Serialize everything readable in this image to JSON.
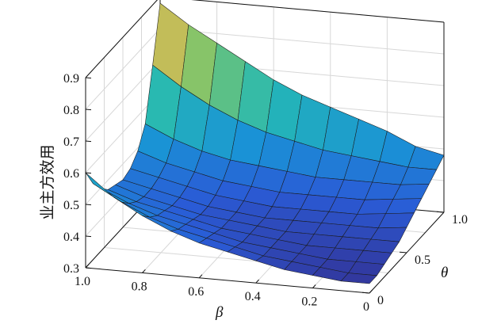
{
  "chart_data": {
    "type": "surface3d",
    "title": "",
    "xlabel": "β",
    "ylabel": "θ",
    "zlabel": "业主方效用",
    "xlim": [
      0,
      1
    ],
    "ylim": [
      0,
      1
    ],
    "zlim": [
      0.3,
      0.9
    ],
    "x_ticks": [
      "1.0",
      "0.8",
      "0.6",
      "0.4",
      "0.2",
      "0"
    ],
    "y_ticks": [
      "0",
      "0.5",
      "1.0"
    ],
    "z_ticks": [
      "0.3",
      "0.4",
      "0.5",
      "0.6",
      "0.7",
      "0.8",
      "0.9"
    ],
    "grid": true,
    "colormap": [
      "#352a87",
      "#2a5bd6",
      "#1a92d6",
      "#25b8b5",
      "#7cc56c",
      "#e7b84f",
      "#f9fb0e"
    ],
    "x": [
      0,
      0.1,
      0.2,
      0.3,
      0.4,
      0.5,
      0.6,
      0.7,
      0.8,
      0.9,
      1.0
    ],
    "y": [
      0,
      0.1,
      0.2,
      0.3,
      0.4,
      0.5,
      0.6,
      0.7,
      0.8,
      0.9,
      1.0
    ],
    "z": [
      [
        0.33,
        0.33,
        0.34,
        0.35,
        0.36,
        0.38,
        0.4,
        0.42,
        0.44,
        0.46,
        0.48
      ],
      [
        0.33,
        0.33,
        0.34,
        0.35,
        0.36,
        0.37,
        0.39,
        0.41,
        0.43,
        0.46,
        0.5
      ],
      [
        0.34,
        0.34,
        0.34,
        0.35,
        0.36,
        0.37,
        0.38,
        0.4,
        0.43,
        0.47,
        0.54
      ],
      [
        0.35,
        0.35,
        0.35,
        0.35,
        0.36,
        0.37,
        0.38,
        0.4,
        0.43,
        0.48,
        0.57
      ],
      [
        0.37,
        0.36,
        0.36,
        0.36,
        0.36,
        0.37,
        0.38,
        0.4,
        0.43,
        0.49,
        0.6
      ],
      [
        0.39,
        0.38,
        0.37,
        0.37,
        0.37,
        0.37,
        0.38,
        0.4,
        0.44,
        0.51,
        0.63
      ],
      [
        0.41,
        0.4,
        0.39,
        0.38,
        0.38,
        0.38,
        0.39,
        0.41,
        0.45,
        0.53,
        0.67
      ],
      [
        0.44,
        0.42,
        0.41,
        0.4,
        0.39,
        0.39,
        0.4,
        0.42,
        0.46,
        0.56,
        0.72
      ],
      [
        0.48,
        0.45,
        0.43,
        0.42,
        0.41,
        0.41,
        0.42,
        0.44,
        0.48,
        0.6,
        0.77
      ],
      [
        0.53,
        0.49,
        0.46,
        0.44,
        0.43,
        0.43,
        0.44,
        0.46,
        0.51,
        0.65,
        0.82
      ],
      [
        0.6,
        0.54,
        0.5,
        0.47,
        0.46,
        0.45,
        0.46,
        0.49,
        0.55,
        0.71,
        0.88
      ]
    ]
  }
}
